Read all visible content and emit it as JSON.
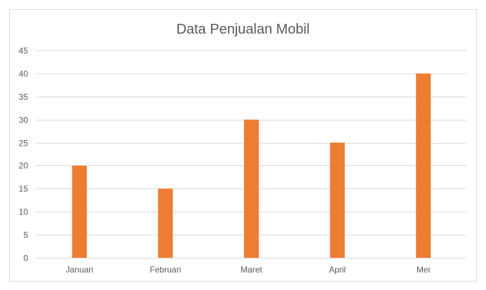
{
  "chart_data": {
    "type": "bar",
    "title": "Data Penjualan Mobil",
    "xlabel": "",
    "ylabel": "",
    "categories": [
      "Januari",
      "Februari",
      "Maret",
      "April",
      "Mei"
    ],
    "values": [
      20,
      15,
      30,
      25,
      40
    ],
    "ylim": [
      0,
      45
    ],
    "yticks": [
      0,
      5,
      10,
      15,
      20,
      25,
      30,
      35,
      40,
      45
    ],
    "grid": true,
    "legend": "none",
    "bar_color": "#ED7D31",
    "grid_color": "#D9D9D9"
  }
}
